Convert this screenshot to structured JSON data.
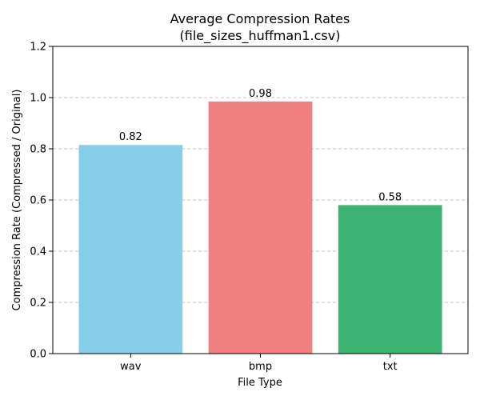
{
  "chart_data": {
    "type": "bar",
    "title_lines": [
      "Average Compression Rates",
      "(file_sizes_huffman1.csv)"
    ],
    "xlabel": "File Type",
    "ylabel": "Compression Rate (Compressed / Original)",
    "categories": [
      "wav",
      "bmp",
      "txt"
    ],
    "values": [
      0.815,
      0.985,
      0.58
    ],
    "value_labels": [
      "0.82",
      "0.98",
      "0.58"
    ],
    "colors": [
      "#87CEEB",
      "#F08080",
      "#3CB371"
    ],
    "ylim": [
      0,
      1.2
    ],
    "y_ticks": [
      "0.0",
      "0.2",
      "0.4",
      "0.6",
      "0.8",
      "1.0",
      "1.2"
    ],
    "grid": "y-dashed",
    "legend": "none"
  }
}
